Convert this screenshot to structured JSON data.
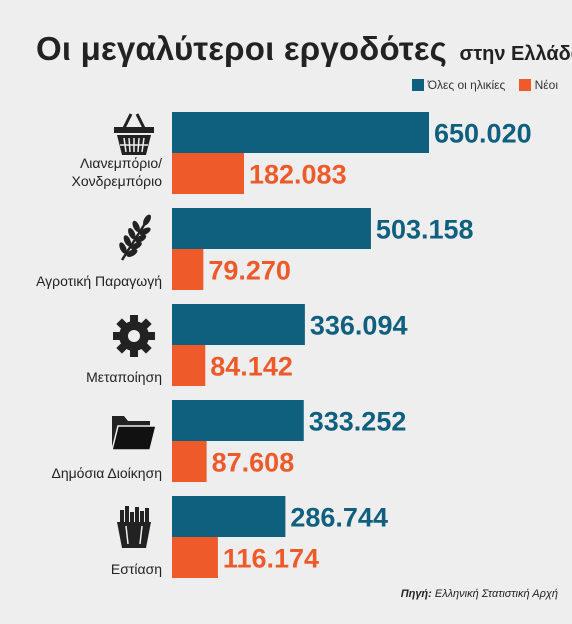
{
  "title": "Οι μεγαλύτεροι εργοδότες",
  "subtitle": "στην Ελλάδα",
  "colors": {
    "all_ages": "#0f5f7f",
    "young": "#ef5a2a"
  },
  "source": {
    "label": "Πηγή:",
    "text": "Ελληνική Στατιστική Αρχή"
  },
  "chart_data": {
    "type": "bar",
    "orientation": "horizontal",
    "categories": [
      "Λιανεμπόριο/\nΧονδρεμπόριο",
      "Αγροτική Παραγωγή",
      "Μεταποίηση",
      "Δημόσια Διοίκηση",
      "Εστίαση"
    ],
    "icons": [
      "basket-icon",
      "wheat-icon",
      "gear-icon",
      "folder-icon",
      "fries-icon"
    ],
    "series": [
      {
        "name": "Όλες οι ηλικίες",
        "values": [
          650020,
          503158,
          336094,
          333252,
          286744
        ],
        "labels": [
          "650.020",
          "503.158",
          "336.094",
          "333.252",
          "286.744"
        ]
      },
      {
        "name": "Νέοι",
        "values": [
          182083,
          79270,
          84142,
          87608,
          116174
        ],
        "labels": [
          "182.083",
          "79.270",
          "84.142",
          "87.608",
          "116.174"
        ]
      }
    ],
    "legend_position": "top-right",
    "grid": false
  }
}
